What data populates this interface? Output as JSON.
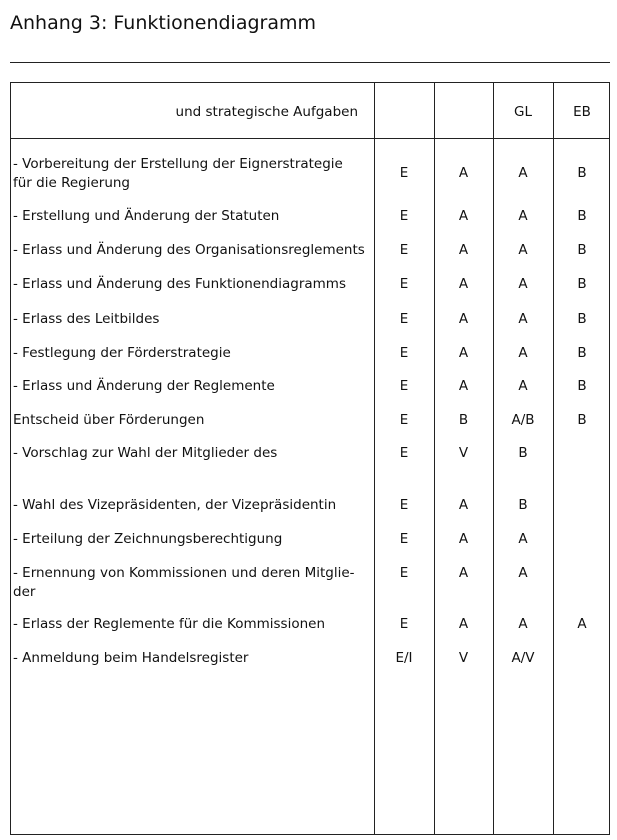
{
  "header": {
    "title": "Anhang 3: Funktionendiagramm"
  },
  "table": {
    "columns": [
      "und strategische Aufgaben",
      null,
      null,
      "GL",
      "EB"
    ],
    "rows": [
      {
        "task": "- Vorbereitung der Erstellung der Eignerstrategie für die Regierung",
        "values": [
          "E",
          "A",
          "A",
          "B"
        ]
      },
      {
        "task": "- Erstellung und Änderung der Statuten",
        "values": [
          "E",
          "A",
          "A",
          "B"
        ]
      },
      {
        "task": "- Erlass und Änderung des Organisationsreglements",
        "values": [
          "E",
          "A",
          "A",
          "B"
        ]
      },
      {
        "task": "- Erlass und Änderung des Funktionendiagramms",
        "values": [
          "E",
          "A",
          "A",
          "B"
        ]
      },
      {
        "task": "- Erlass des Leitbildes",
        "values": [
          "E",
          "A",
          "A",
          "B"
        ]
      },
      {
        "task": "- Festlegung der Förderstrategie",
        "values": [
          "E",
          "A",
          "A",
          "B"
        ]
      },
      {
        "task": "- Erlass und Änderung der Reglemente",
        "values": [
          "E",
          "A",
          "A",
          "B"
        ]
      },
      {
        "task": "Entscheid über Förderungen",
        "values": [
          "E",
          "B",
          "A/B",
          "B"
        ]
      },
      {
        "task": "- Vorschlag zur Wahl der Mitglieder des",
        "values": [
          "E",
          "V",
          "B",
          null
        ]
      },
      {
        "task": "- Wahl des Vizepräsidenten, der Vizepräsidentin",
        "values": [
          "E",
          "A",
          "B",
          null
        ]
      },
      {
        "task": "- Erteilung der Zeichnungsberechtigung",
        "values": [
          "E",
          "A",
          "A",
          null
        ]
      },
      {
        "task": "- Ernennung von Kommissionen und deren Mitglie­der",
        "values": [
          "E",
          "A",
          "A",
          null
        ]
      },
      {
        "task": "- Erlass der Reglemente für die Kommissionen",
        "values": [
          "E",
          "A",
          "A",
          "A"
        ]
      },
      {
        "task": "- Anmeldung beim Handelsregister",
        "values": [
          "E/I",
          "V",
          "A/V",
          null
        ]
      }
    ]
  }
}
